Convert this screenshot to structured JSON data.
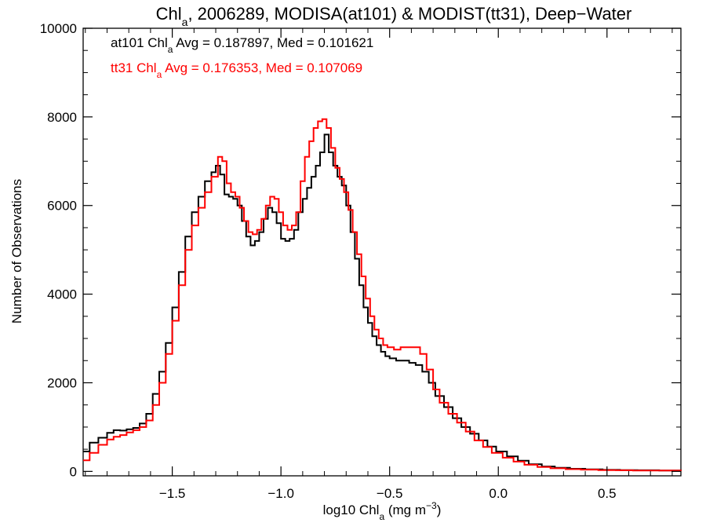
{
  "chart_data": {
    "type": "line",
    "title": {
      "main": "Chl",
      "sub": "a",
      "rest": ", 2006289, MODISA(at101) & MODIST(tt31), Deep−Water"
    },
    "xlabel": {
      "main": "log10 Chl",
      "sub": "a",
      "rest": " (mg m",
      "sup": "−3",
      "end": ")"
    },
    "ylabel": "Number of Observations",
    "xlim": [
      -1.91,
      0.84
    ],
    "ylim": [
      -100,
      10000
    ],
    "xticks": [
      {
        "value": -1.5,
        "label": "−1.5"
      },
      {
        "value": -1.0,
        "label": "−1.0"
      },
      {
        "value": -0.5,
        "label": "−0.5"
      },
      {
        "value": 0.0,
        "label": "0.0"
      },
      {
        "value": 0.5,
        "label": "0.5"
      }
    ],
    "yticks": [
      {
        "value": 0,
        "label": "0"
      },
      {
        "value": 2000,
        "label": "2000"
      },
      {
        "value": 4000,
        "label": "4000"
      },
      {
        "value": 6000,
        "label": "6000"
      },
      {
        "value": 8000,
        "label": "8000"
      },
      {
        "value": 10000,
        "label": "10000"
      }
    ],
    "annotations": [
      {
        "prefix": "at101 Chl",
        "sub": "a",
        "rest": " Avg = 0.187897, Med = 0.101621",
        "color": "#000000"
      },
      {
        "prefix": "tt31 Chl",
        "sub": "a",
        "rest": " Avg = 0.176353, Med = 0.107069",
        "color": "#ff0000"
      }
    ],
    "grid": false,
    "step": true,
    "series": [
      {
        "name": "at101",
        "color": "#000000",
        "points": [
          [
            -1.91,
            450
          ],
          [
            -1.88,
            650
          ],
          [
            -1.84,
            760
          ],
          [
            -1.8,
            870
          ],
          [
            -1.77,
            930
          ],
          [
            -1.74,
            920
          ],
          [
            -1.71,
            950
          ],
          [
            -1.68,
            980
          ],
          [
            -1.65,
            1080
          ],
          [
            -1.62,
            1300
          ],
          [
            -1.59,
            1750
          ],
          [
            -1.56,
            2250
          ],
          [
            -1.53,
            2900
          ],
          [
            -1.5,
            3700
          ],
          [
            -1.47,
            4500
          ],
          [
            -1.44,
            5300
          ],
          [
            -1.41,
            5850
          ],
          [
            -1.38,
            6200
          ],
          [
            -1.35,
            6550
          ],
          [
            -1.32,
            6750
          ],
          [
            -1.3,
            6900
          ],
          [
            -1.28,
            6700
          ],
          [
            -1.26,
            6250
          ],
          [
            -1.24,
            6200
          ],
          [
            -1.22,
            6150
          ],
          [
            -1.2,
            6000
          ],
          [
            -1.18,
            5650
          ],
          [
            -1.16,
            5300
          ],
          [
            -1.14,
            5100
          ],
          [
            -1.12,
            5200
          ],
          [
            -1.1,
            5400
          ],
          [
            -1.08,
            5700
          ],
          [
            -1.06,
            5950
          ],
          [
            -1.04,
            5850
          ],
          [
            -1.02,
            5600
          ],
          [
            -1.0,
            5250
          ],
          [
            -0.98,
            5200
          ],
          [
            -0.96,
            5250
          ],
          [
            -0.94,
            5450
          ],
          [
            -0.92,
            5850
          ],
          [
            -0.9,
            6150
          ],
          [
            -0.88,
            6400
          ],
          [
            -0.86,
            6650
          ],
          [
            -0.84,
            6900
          ],
          [
            -0.82,
            7200
          ],
          [
            -0.8,
            7600
          ],
          [
            -0.78,
            7200
          ],
          [
            -0.76,
            6900
          ],
          [
            -0.74,
            6650
          ],
          [
            -0.72,
            6450
          ],
          [
            -0.7,
            6000
          ],
          [
            -0.68,
            5400
          ],
          [
            -0.66,
            4800
          ],
          [
            -0.64,
            4200
          ],
          [
            -0.62,
            3700
          ],
          [
            -0.6,
            3350
          ],
          [
            -0.58,
            3050
          ],
          [
            -0.56,
            2850
          ],
          [
            -0.54,
            2700
          ],
          [
            -0.52,
            2600
          ],
          [
            -0.5,
            2550
          ],
          [
            -0.47,
            2500
          ],
          [
            -0.44,
            2500
          ],
          [
            -0.41,
            2450
          ],
          [
            -0.38,
            2400
          ],
          [
            -0.35,
            2250
          ],
          [
            -0.32,
            2000
          ],
          [
            -0.29,
            1700
          ],
          [
            -0.25,
            1450
          ],
          [
            -0.21,
            1200
          ],
          [
            -0.17,
            1000
          ],
          [
            -0.13,
            850
          ],
          [
            -0.09,
            700
          ],
          [
            -0.05,
            560
          ],
          [
            -0.01,
            450
          ],
          [
            0.04,
            340
          ],
          [
            0.09,
            240
          ],
          [
            0.14,
            160
          ],
          [
            0.2,
            110
          ],
          [
            0.26,
            80
          ],
          [
            0.33,
            60
          ],
          [
            0.4,
            45
          ],
          [
            0.48,
            35
          ],
          [
            0.56,
            30
          ],
          [
            0.64,
            25
          ],
          [
            0.74,
            20
          ],
          [
            0.84,
            15
          ]
        ]
      },
      {
        "name": "tt31",
        "color": "#ff0000",
        "points": [
          [
            -1.91,
            250
          ],
          [
            -1.88,
            420
          ],
          [
            -1.84,
            600
          ],
          [
            -1.8,
            720
          ],
          [
            -1.77,
            780
          ],
          [
            -1.74,
            820
          ],
          [
            -1.71,
            880
          ],
          [
            -1.68,
            930
          ],
          [
            -1.65,
            1000
          ],
          [
            -1.62,
            1150
          ],
          [
            -1.59,
            1500
          ],
          [
            -1.56,
            2000
          ],
          [
            -1.53,
            2650
          ],
          [
            -1.5,
            3400
          ],
          [
            -1.47,
            4200
          ],
          [
            -1.44,
            5000
          ],
          [
            -1.41,
            5550
          ],
          [
            -1.38,
            5950
          ],
          [
            -1.35,
            6300
          ],
          [
            -1.32,
            6650
          ],
          [
            -1.29,
            7100
          ],
          [
            -1.27,
            7000
          ],
          [
            -1.25,
            6500
          ],
          [
            -1.23,
            6300
          ],
          [
            -1.21,
            6200
          ],
          [
            -1.19,
            5950
          ],
          [
            -1.17,
            5650
          ],
          [
            -1.15,
            5400
          ],
          [
            -1.13,
            5350
          ],
          [
            -1.11,
            5450
          ],
          [
            -1.09,
            5700
          ],
          [
            -1.07,
            6000
          ],
          [
            -1.05,
            6200
          ],
          [
            -1.03,
            6150
          ],
          [
            -1.01,
            5850
          ],
          [
            -0.99,
            5550
          ],
          [
            -0.97,
            5450
          ],
          [
            -0.95,
            5550
          ],
          [
            -0.93,
            5850
          ],
          [
            -0.91,
            6550
          ],
          [
            -0.89,
            7100
          ],
          [
            -0.87,
            7450
          ],
          [
            -0.85,
            7750
          ],
          [
            -0.83,
            7900
          ],
          [
            -0.81,
            7950
          ],
          [
            -0.79,
            7750
          ],
          [
            -0.77,
            7300
          ],
          [
            -0.75,
            6850
          ],
          [
            -0.73,
            6600
          ],
          [
            -0.71,
            6300
          ],
          [
            -0.69,
            5900
          ],
          [
            -0.67,
            5400
          ],
          [
            -0.65,
            4900
          ],
          [
            -0.63,
            4400
          ],
          [
            -0.61,
            3900
          ],
          [
            -0.59,
            3500
          ],
          [
            -0.57,
            3200
          ],
          [
            -0.55,
            3000
          ],
          [
            -0.53,
            2850
          ],
          [
            -0.51,
            2800
          ],
          [
            -0.48,
            2750
          ],
          [
            -0.45,
            2800
          ],
          [
            -0.42,
            2800
          ],
          [
            -0.39,
            2800
          ],
          [
            -0.36,
            2650
          ],
          [
            -0.33,
            2300
          ],
          [
            -0.3,
            1850
          ],
          [
            -0.27,
            1550
          ],
          [
            -0.23,
            1300
          ],
          [
            -0.19,
            1100
          ],
          [
            -0.15,
            900
          ],
          [
            -0.11,
            700
          ],
          [
            -0.07,
            550
          ],
          [
            -0.03,
            420
          ],
          [
            0.02,
            310
          ],
          [
            0.07,
            220
          ],
          [
            0.12,
            150
          ],
          [
            0.18,
            100
          ],
          [
            0.24,
            70
          ],
          [
            0.31,
            50
          ],
          [
            0.38,
            40
          ],
          [
            0.46,
            30
          ],
          [
            0.54,
            25
          ],
          [
            0.62,
            20
          ],
          [
            0.72,
            18
          ],
          [
            0.84,
            12
          ]
        ]
      }
    ]
  }
}
